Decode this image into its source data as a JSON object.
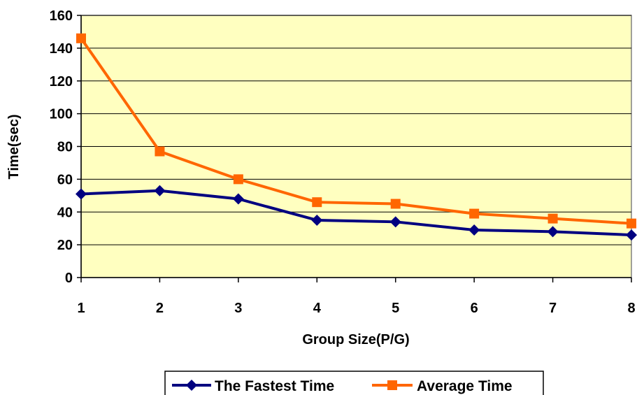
{
  "chart_data": {
    "type": "line",
    "title": "",
    "xlabel": "Group Size(P/G)",
    "ylabel": "Time(sec)",
    "categories": [
      "1",
      "2",
      "3",
      "4",
      "5",
      "6",
      "7",
      "8"
    ],
    "ylim": [
      0,
      160
    ],
    "yticks": [
      "0",
      "20",
      "40",
      "60",
      "80",
      "100",
      "120",
      "140",
      "160"
    ],
    "grid": true,
    "plot_background": "#FFFFC0",
    "legend_position": "bottom",
    "series": [
      {
        "name": "The Fastest Time",
        "color": "#000080",
        "marker": "diamond",
        "values": [
          51,
          53,
          48,
          35,
          34,
          29,
          28,
          26
        ]
      },
      {
        "name": "Average Time",
        "color": "#FF6600",
        "marker": "square",
        "values": [
          146,
          77,
          60,
          46,
          45,
          39,
          36,
          33
        ]
      }
    ]
  }
}
